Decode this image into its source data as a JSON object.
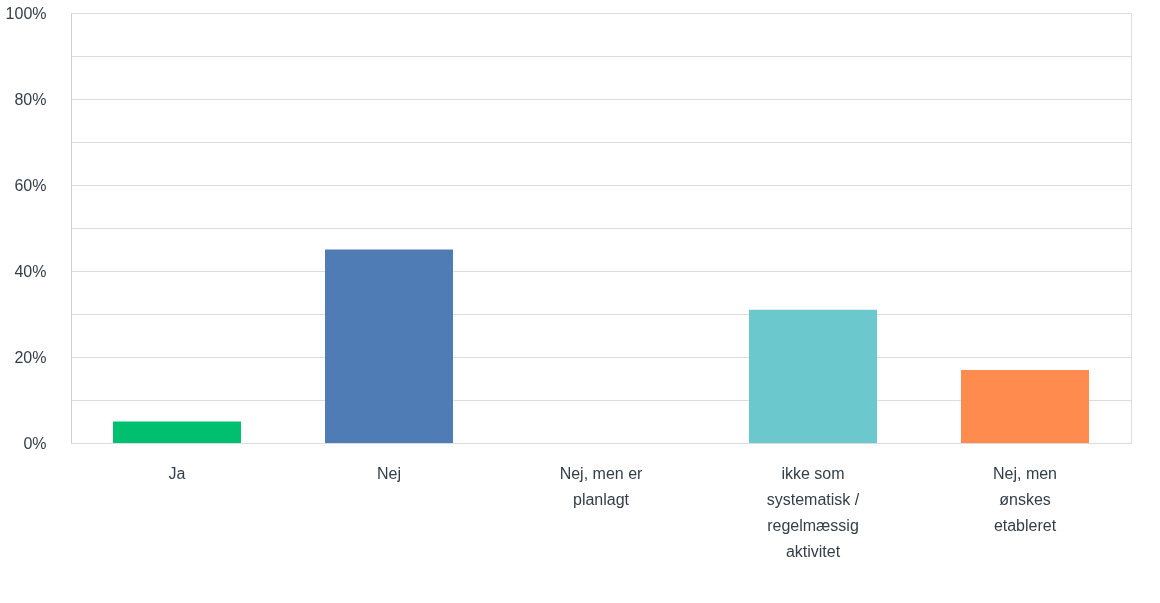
{
  "chart_data": {
    "type": "bar",
    "categories": [
      "Ja",
      "Nej",
      "Nej, men er planlagt",
      "ikke som systematisk / regelmæssig aktivitet",
      "Nej, men ønskes etableret"
    ],
    "values": [
      5,
      45,
      0,
      31,
      17
    ],
    "colors": [
      "#00bf6f",
      "#507cb6",
      "#f9be00",
      "#6bc8cd",
      "#ff8b4f"
    ],
    "ylim": [
      0,
      100
    ],
    "yticks": [
      {
        "value": 0,
        "label": "0%"
      },
      {
        "value": 10,
        "label": null
      },
      {
        "value": 20,
        "label": "20%"
      },
      {
        "value": 30,
        "label": null
      },
      {
        "value": 40,
        "label": "40%"
      },
      {
        "value": 50,
        "label": null
      },
      {
        "value": 60,
        "label": "60%"
      },
      {
        "value": 70,
        "label": null
      },
      {
        "value": 80,
        "label": "80%"
      },
      {
        "value": 90,
        "label": null
      },
      {
        "value": 100,
        "label": "100%"
      }
    ],
    "grid": "y"
  }
}
